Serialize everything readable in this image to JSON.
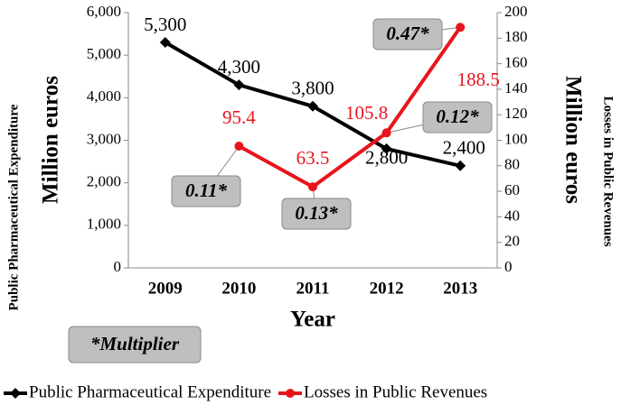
{
  "chart_data": {
    "type": "line",
    "categories": [
      "2009",
      "2010",
      "2011",
      "2012",
      "2013"
    ],
    "series": [
      {
        "name": "Public Pharmaceutical Expenditure",
        "color": "#000000",
        "values": [
          5300,
          4300,
          3800,
          2800,
          2400
        ],
        "value_labels": [
          "5,300",
          "4,300",
          "3,800",
          "2,800",
          "2,400"
        ]
      },
      {
        "name": "Losses in Public Revenues",
        "color": "#e8141c",
        "axis": "y2",
        "values": [
          null,
          95.4,
          63.5,
          105.8,
          188.5
        ]
      }
    ],
    "ylim": [
      0,
      6000
    ],
    "yticks": [
      0,
      {
        "value": 1000,
        "label": "1,000"
      },
      {
        "value": 2000,
        "label": "2,000"
      },
      {
        "value": 3000,
        "label": "3,000"
      },
      {
        "value": 4000,
        "label": "4,000"
      },
      {
        "value": 5000,
        "label": "5,000"
      },
      {
        "value": 6000,
        "label": "6,000"
      }
    ],
    "y2lim": [
      0,
      200
    ],
    "y2ticks": [
      0,
      20,
      40,
      60,
      80,
      100,
      120,
      140,
      160,
      180,
      200
    ],
    "xlabel": "Year",
    "ylabel": "Million euros",
    "ylabel_outer": "Public Pharmaceutical Expenditure",
    "y2label": "Million euros",
    "y2label_outer": "Losses in Public Revenues",
    "annotations": [
      "0.11*",
      "0.13*",
      "0.12*",
      "0.47*"
    ],
    "note": "*Multiplier",
    "legend": "bottom"
  }
}
